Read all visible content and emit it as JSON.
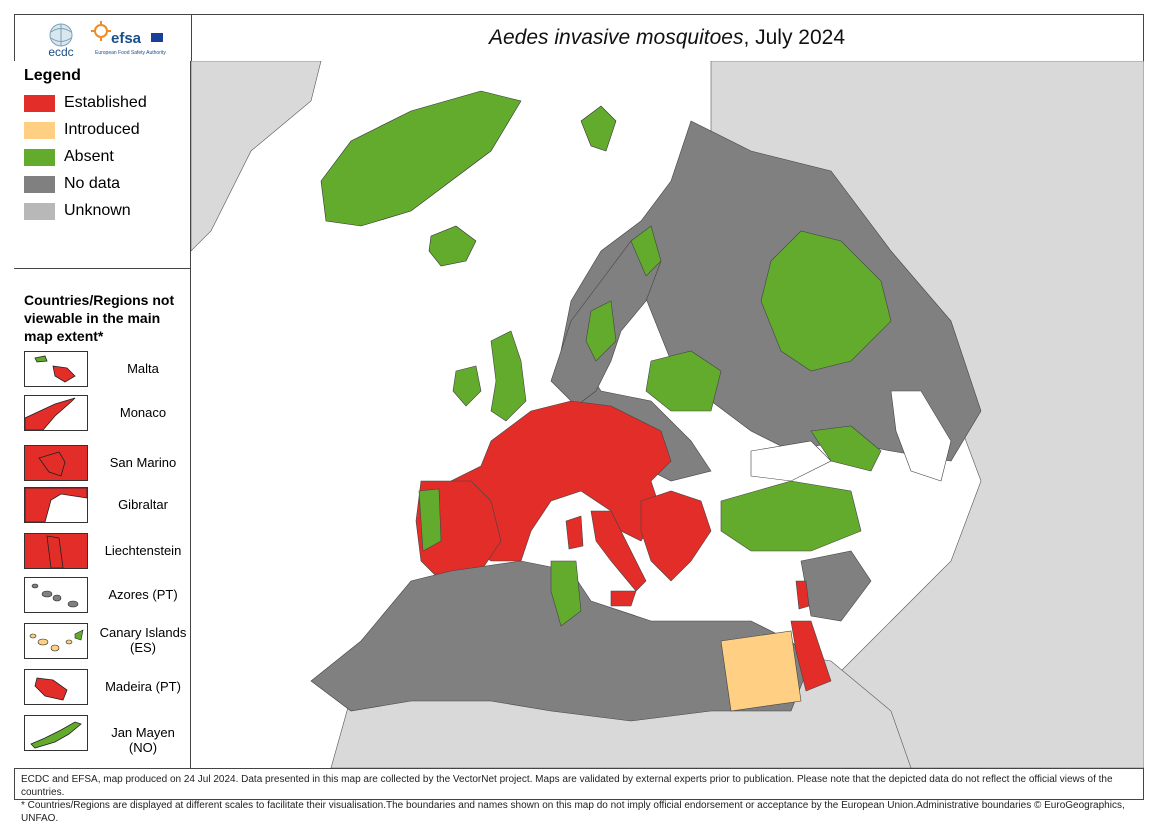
{
  "title": {
    "italic": "Aedes invasive mosquitoes",
    "rest": ", July 2024"
  },
  "logos": {
    "ecdc": "ecdc",
    "efsa": "efsa",
    "efsa_sub": "European Food Safety Authority"
  },
  "legend": {
    "title": "Legend",
    "items": [
      {
        "label": "Established",
        "color": "#e32d28"
      },
      {
        "label": "Introduced",
        "color": "#ffd083"
      },
      {
        "label": "Absent",
        "color": "#63ab2d"
      },
      {
        "label": "No data",
        "color": "#808080"
      },
      {
        "label": "Unknown",
        "color": "#b8b8b8"
      }
    ]
  },
  "regions": {
    "title": "Countries/Regions not viewable in the main map extent*",
    "items": [
      {
        "label": "Malta",
        "status": "Established"
      },
      {
        "label": "Monaco",
        "status": "Established"
      },
      {
        "label": "San Marino",
        "status": "Established"
      },
      {
        "label": "Gibraltar",
        "status": "Established"
      },
      {
        "label": "Liechtenstein",
        "status": "Established"
      },
      {
        "label": "Azores (PT)",
        "status": "No data"
      },
      {
        "label": "Canary Islands (ES)",
        "status": "Introduced"
      },
      {
        "label": "Madeira (PT)",
        "status": "Established"
      },
      {
        "label": "Jan Mayen (NO)",
        "status": "Absent"
      }
    ]
  },
  "footer": {
    "line1": "ECDC and EFSA, map produced on 24 Jul 2024. Data presented in this map are collected by the VectorNet project. Maps are validated by external experts prior to publication. Please note that the depicted data do not reflect the official views of the countries.",
    "line2": "* Countries/Regions are displayed at different scales to facilitate their visualisation.The boundaries and names shown on this map do not imply official endorsement or acceptance by the European Union.Administrative boundaries © EuroGeographics, UNFAO."
  }
}
